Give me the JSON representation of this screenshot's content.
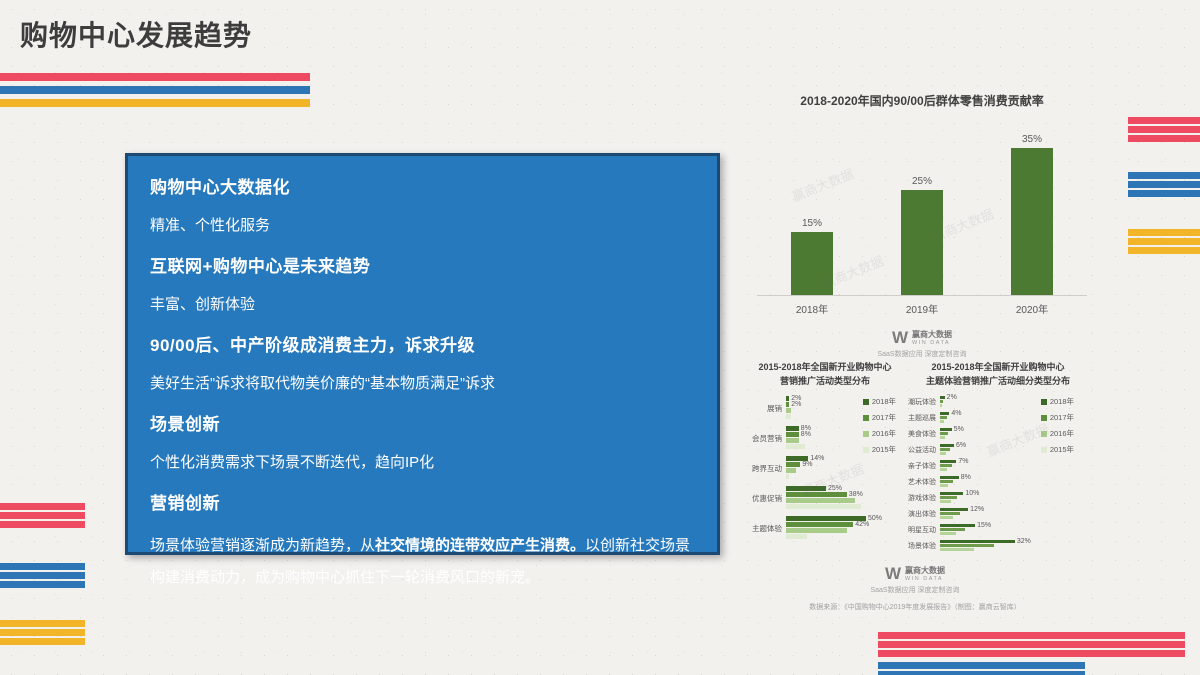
{
  "slide": {
    "title": "购物中心发展趋势"
  },
  "content_box": {
    "items": [
      {
        "type": "heading",
        "text": "购物中心大数据化"
      },
      {
        "type": "body",
        "text": "精准、个性化服务"
      },
      {
        "type": "heading",
        "text": "互联网+购物中心是未来趋势"
      },
      {
        "type": "body",
        "text": "丰富、创新体验"
      },
      {
        "type": "heading",
        "text": "90/00后、中产阶级成消费主力，诉求升级"
      },
      {
        "type": "body",
        "text": "美好生活”诉求将取代物美价廉的“基本物质满足”诉求"
      },
      {
        "type": "heading",
        "text": "场景创新"
      },
      {
        "type": "body",
        "text": "个性化消费需求下场景不断迭代，趋向IP化"
      },
      {
        "type": "heading",
        "text": "营销创新"
      },
      {
        "type": "body_mixed",
        "pre": "场景体验营销逐渐成为新趋势，从",
        "bold": "社交情境的连带效应产生消费。",
        "post": "以创新社交场景构建消费动力，成为购物中心抓住下一轮消费风口的新宠。"
      }
    ]
  },
  "chart_data": [
    {
      "id": "retail-contribution",
      "type": "bar",
      "title": "2018-2020年国内90/00后群体零售消费贡献率",
      "categories": [
        "2018年",
        "2019年",
        "2020年"
      ],
      "values": [
        15,
        25,
        35
      ],
      "data_labels": [
        "15%",
        "25%",
        "35%"
      ],
      "unit": "%",
      "ylim": [
        0,
        40
      ],
      "bar_color": "#4c7a33"
    },
    {
      "id": "marketing-activity-types",
      "type": "hbar_grouped",
      "title_line1": "2015-2018年全国新开业购物中心",
      "title_line2": "营销推广活动类型分布",
      "legend": [
        "2018年",
        "2017年",
        "2016年",
        "2015年"
      ],
      "legend_colors": [
        "#3e6a28",
        "#5e8f3d",
        "#a9cb89",
        "#dfecd3"
      ],
      "categories": [
        "展销",
        "会员营销",
        "跨界互动",
        "优惠促销",
        "主题体验"
      ],
      "series": [
        {
          "name": "2018年",
          "values": [
            2,
            8,
            14,
            25,
            50
          ]
        },
        {
          "name": "2017年",
          "values": [
            2,
            8,
            9,
            38,
            42
          ]
        },
        {
          "name": "2016年",
          "values": [
            3,
            8,
            6,
            43,
            38
          ]
        },
        {
          "name": "2015年",
          "values": [
            3,
            12,
            2,
            47,
            13
          ]
        }
      ],
      "labeled_series_count": 2
    },
    {
      "id": "theme-experience-subtypes",
      "type": "hbar",
      "title_line1": "2015-2018年全国新开业购物中心",
      "title_line2": "主题体验营销推广活动细分类型分布",
      "legend": [
        "2018年",
        "2017年",
        "2016年",
        "2015年"
      ],
      "legend_colors": [
        "#3e6a28",
        "#5e8f3d",
        "#a9cb89",
        "#dfecd3"
      ],
      "cluster_colors": [
        "#3e6a28",
        "#6f9c4c",
        "#b5d49a"
      ],
      "categories": [
        "潮玩体验",
        "主题巡展",
        "美食体验",
        "公益活动",
        "亲子体验",
        "艺术体验",
        "游戏体验",
        "演出体验",
        "明星互动",
        "场景体验"
      ],
      "values": [
        2,
        4,
        5,
        6,
        7,
        8,
        10,
        12,
        15,
        32
      ],
      "data_labels": [
        "2%",
        "4%",
        "5%",
        "6%",
        "7%",
        "8%",
        "10%",
        "12%",
        "15%",
        "32%"
      ]
    }
  ],
  "branding": {
    "logo_mark": "W",
    "logo_name": "赢商大数据",
    "logo_sub": "WIN DATA",
    "logo_tagline": "SaaS数据应用 深度定制咨询",
    "source_note": "数据来源：《中国购物中心2019年度发展报告》（制图：赢商云智库）",
    "watermark": "赢商大数据"
  },
  "colors": {
    "accent_red": "#ee4a62",
    "accent_blue": "#2e75b6",
    "accent_yellow": "#f2b52a",
    "panel_blue": "#2779bd",
    "bar_green": "#4c7a33"
  }
}
